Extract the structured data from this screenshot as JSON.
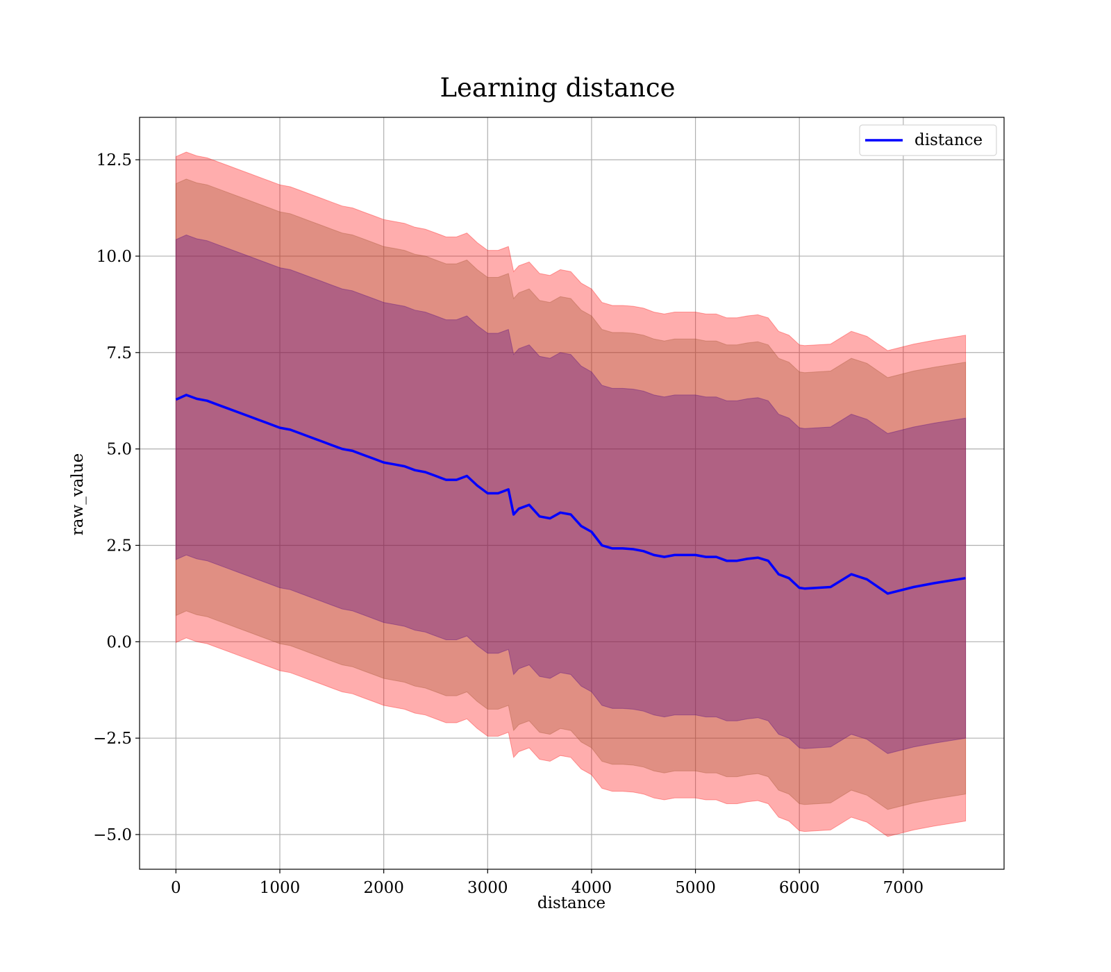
{
  "chart_data": {
    "type": "area",
    "title": "Learning distance",
    "xlabel": "distance",
    "ylabel": "raw_value",
    "xlim": [
      -350,
      7970
    ],
    "ylim": [
      -5.9,
      13.6
    ],
    "xticks": [
      0,
      1000,
      2000,
      3000,
      4000,
      5000,
      6000,
      7000
    ],
    "yticks": [
      -5.0,
      -2.5,
      0.0,
      2.5,
      5.0,
      7.5,
      10.0,
      12.5
    ],
    "ytick_labels": [
      "−5.0",
      "−2.5",
      "0.0",
      "2.5",
      "5.0",
      "7.5",
      "10.0",
      "12.5"
    ],
    "grid": true,
    "legend": {
      "position": "top-right",
      "entries": [
        "distance"
      ]
    },
    "colors": {
      "line": "#0000ff",
      "band_outer": "#ff0000",
      "band_middle": "#a0522d",
      "band_inner": "#4b0082"
    },
    "series": [
      {
        "name": "distance",
        "x": [
          0,
          100,
          200,
          300,
          400,
          500,
          600,
          700,
          800,
          900,
          1000,
          1100,
          1200,
          1300,
          1400,
          1500,
          1600,
          1700,
          1800,
          1900,
          2000,
          2100,
          2200,
          2300,
          2400,
          2500,
          2600,
          2700,
          2800,
          2900,
          3000,
          3100,
          3200,
          3250,
          3300,
          3400,
          3500,
          3600,
          3700,
          3800,
          3900,
          4000,
          4100,
          4200,
          4300,
          4400,
          4500,
          4600,
          4700,
          4800,
          4900,
          5000,
          5100,
          5200,
          5300,
          5400,
          5500,
          5600,
          5700,
          5800,
          5900,
          6000,
          6050,
          6300,
          6500,
          6650,
          6850,
          7100,
          7300,
          7600
        ],
        "y": [
          6.28,
          6.4,
          6.3,
          6.25,
          6.15,
          6.05,
          5.95,
          5.85,
          5.75,
          5.65,
          5.55,
          5.5,
          5.4,
          5.3,
          5.2,
          5.1,
          5.0,
          4.95,
          4.85,
          4.75,
          4.65,
          4.6,
          4.55,
          4.45,
          4.4,
          4.3,
          4.2,
          4.2,
          4.3,
          4.05,
          3.85,
          3.85,
          3.95,
          3.3,
          3.45,
          3.55,
          3.25,
          3.2,
          3.35,
          3.3,
          3.0,
          2.85,
          2.5,
          2.42,
          2.42,
          2.4,
          2.35,
          2.25,
          2.2,
          2.25,
          2.25,
          2.25,
          2.2,
          2.2,
          2.1,
          2.1,
          2.15,
          2.18,
          2.1,
          1.75,
          1.65,
          1.4,
          1.38,
          1.42,
          1.75,
          1.62,
          1.25,
          1.42,
          1.52,
          1.65
        ]
      }
    ],
    "bands": [
      {
        "name": "outer",
        "offset": 6.3
      },
      {
        "name": "middle",
        "offset": 5.6
      },
      {
        "name": "inner",
        "offset": 4.15
      }
    ]
  }
}
